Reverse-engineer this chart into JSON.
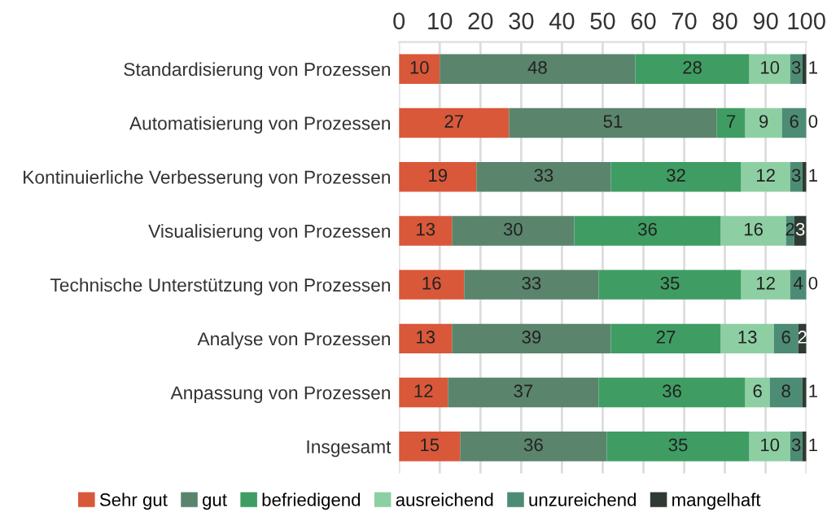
{
  "chart_data": {
    "type": "bar",
    "orientation": "horizontal",
    "stacked": true,
    "categories": [
      "Standardisierung von Prozessen",
      "Automatisierung von Prozessen",
      "Kontinuierliche Verbesserung von Prozessen",
      "Visualisierung von Prozessen",
      "Technische Unterstützung von Prozessen",
      "Analyse von Prozessen",
      "Anpassung von Prozessen",
      "Insgesamt"
    ],
    "series": [
      {
        "name": "Sehr gut",
        "color": "#d9583a",
        "values": [
          10,
          27,
          19,
          13,
          16,
          13,
          12,
          15
        ]
      },
      {
        "name": "gut",
        "color": "#5b846c",
        "values": [
          48,
          51,
          33,
          30,
          33,
          39,
          37,
          36
        ]
      },
      {
        "name": "befriedigend",
        "color": "#3f9d63",
        "values": [
          28,
          7,
          32,
          36,
          35,
          27,
          36,
          35
        ]
      },
      {
        "name": "ausreichend",
        "color": "#8dcfa3",
        "values": [
          10,
          9,
          12,
          16,
          12,
          13,
          6,
          10
        ]
      },
      {
        "name": "unzureichend",
        "color": "#4d8c74",
        "values": [
          3,
          6,
          3,
          2,
          4,
          6,
          8,
          3
        ]
      },
      {
        "name": "mangelhaft",
        "color": "#2e3a32",
        "values": [
          1,
          0,
          1,
          3,
          0,
          2,
          1,
          1
        ]
      }
    ],
    "xlim": [
      0,
      100
    ],
    "xticks": [
      0,
      10,
      20,
      30,
      40,
      50,
      60,
      70,
      80,
      90,
      100
    ],
    "grid": "x",
    "legend": "bottom",
    "data_labels": true
  }
}
